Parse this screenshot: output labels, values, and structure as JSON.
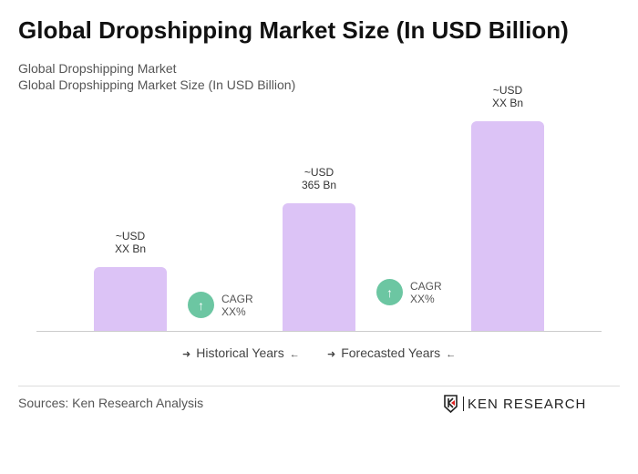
{
  "chart_data": {
    "type": "bar",
    "title": "Global Dropshipping Market Size (In USD Billion)",
    "subtitle": [
      "Global Dropshipping Market",
      "Global Dropshipping Market Size (In USD Billion)"
    ],
    "categories": [
      "",
      "",
      ""
    ],
    "values": [
      null,
      365,
      null
    ],
    "data_labels": [
      [
        "~USD",
        "XX Bn"
      ],
      [
        "~USD",
        "365 Bn"
      ],
      [
        "~USD",
        "XX Bn"
      ]
    ],
    "bar_color": "#dcc3f6",
    "cagr": [
      {
        "label": "CAGR",
        "value": "XX%"
      },
      {
        "label": "CAGR",
        "value": "XX%"
      }
    ],
    "cagr_color": "#6cc6a2",
    "legend": [
      "Historical Years",
      "Forecasted Years"
    ]
  },
  "sources": "Sources: Ken Research Analysis",
  "logo": "KEN RESEARCH"
}
